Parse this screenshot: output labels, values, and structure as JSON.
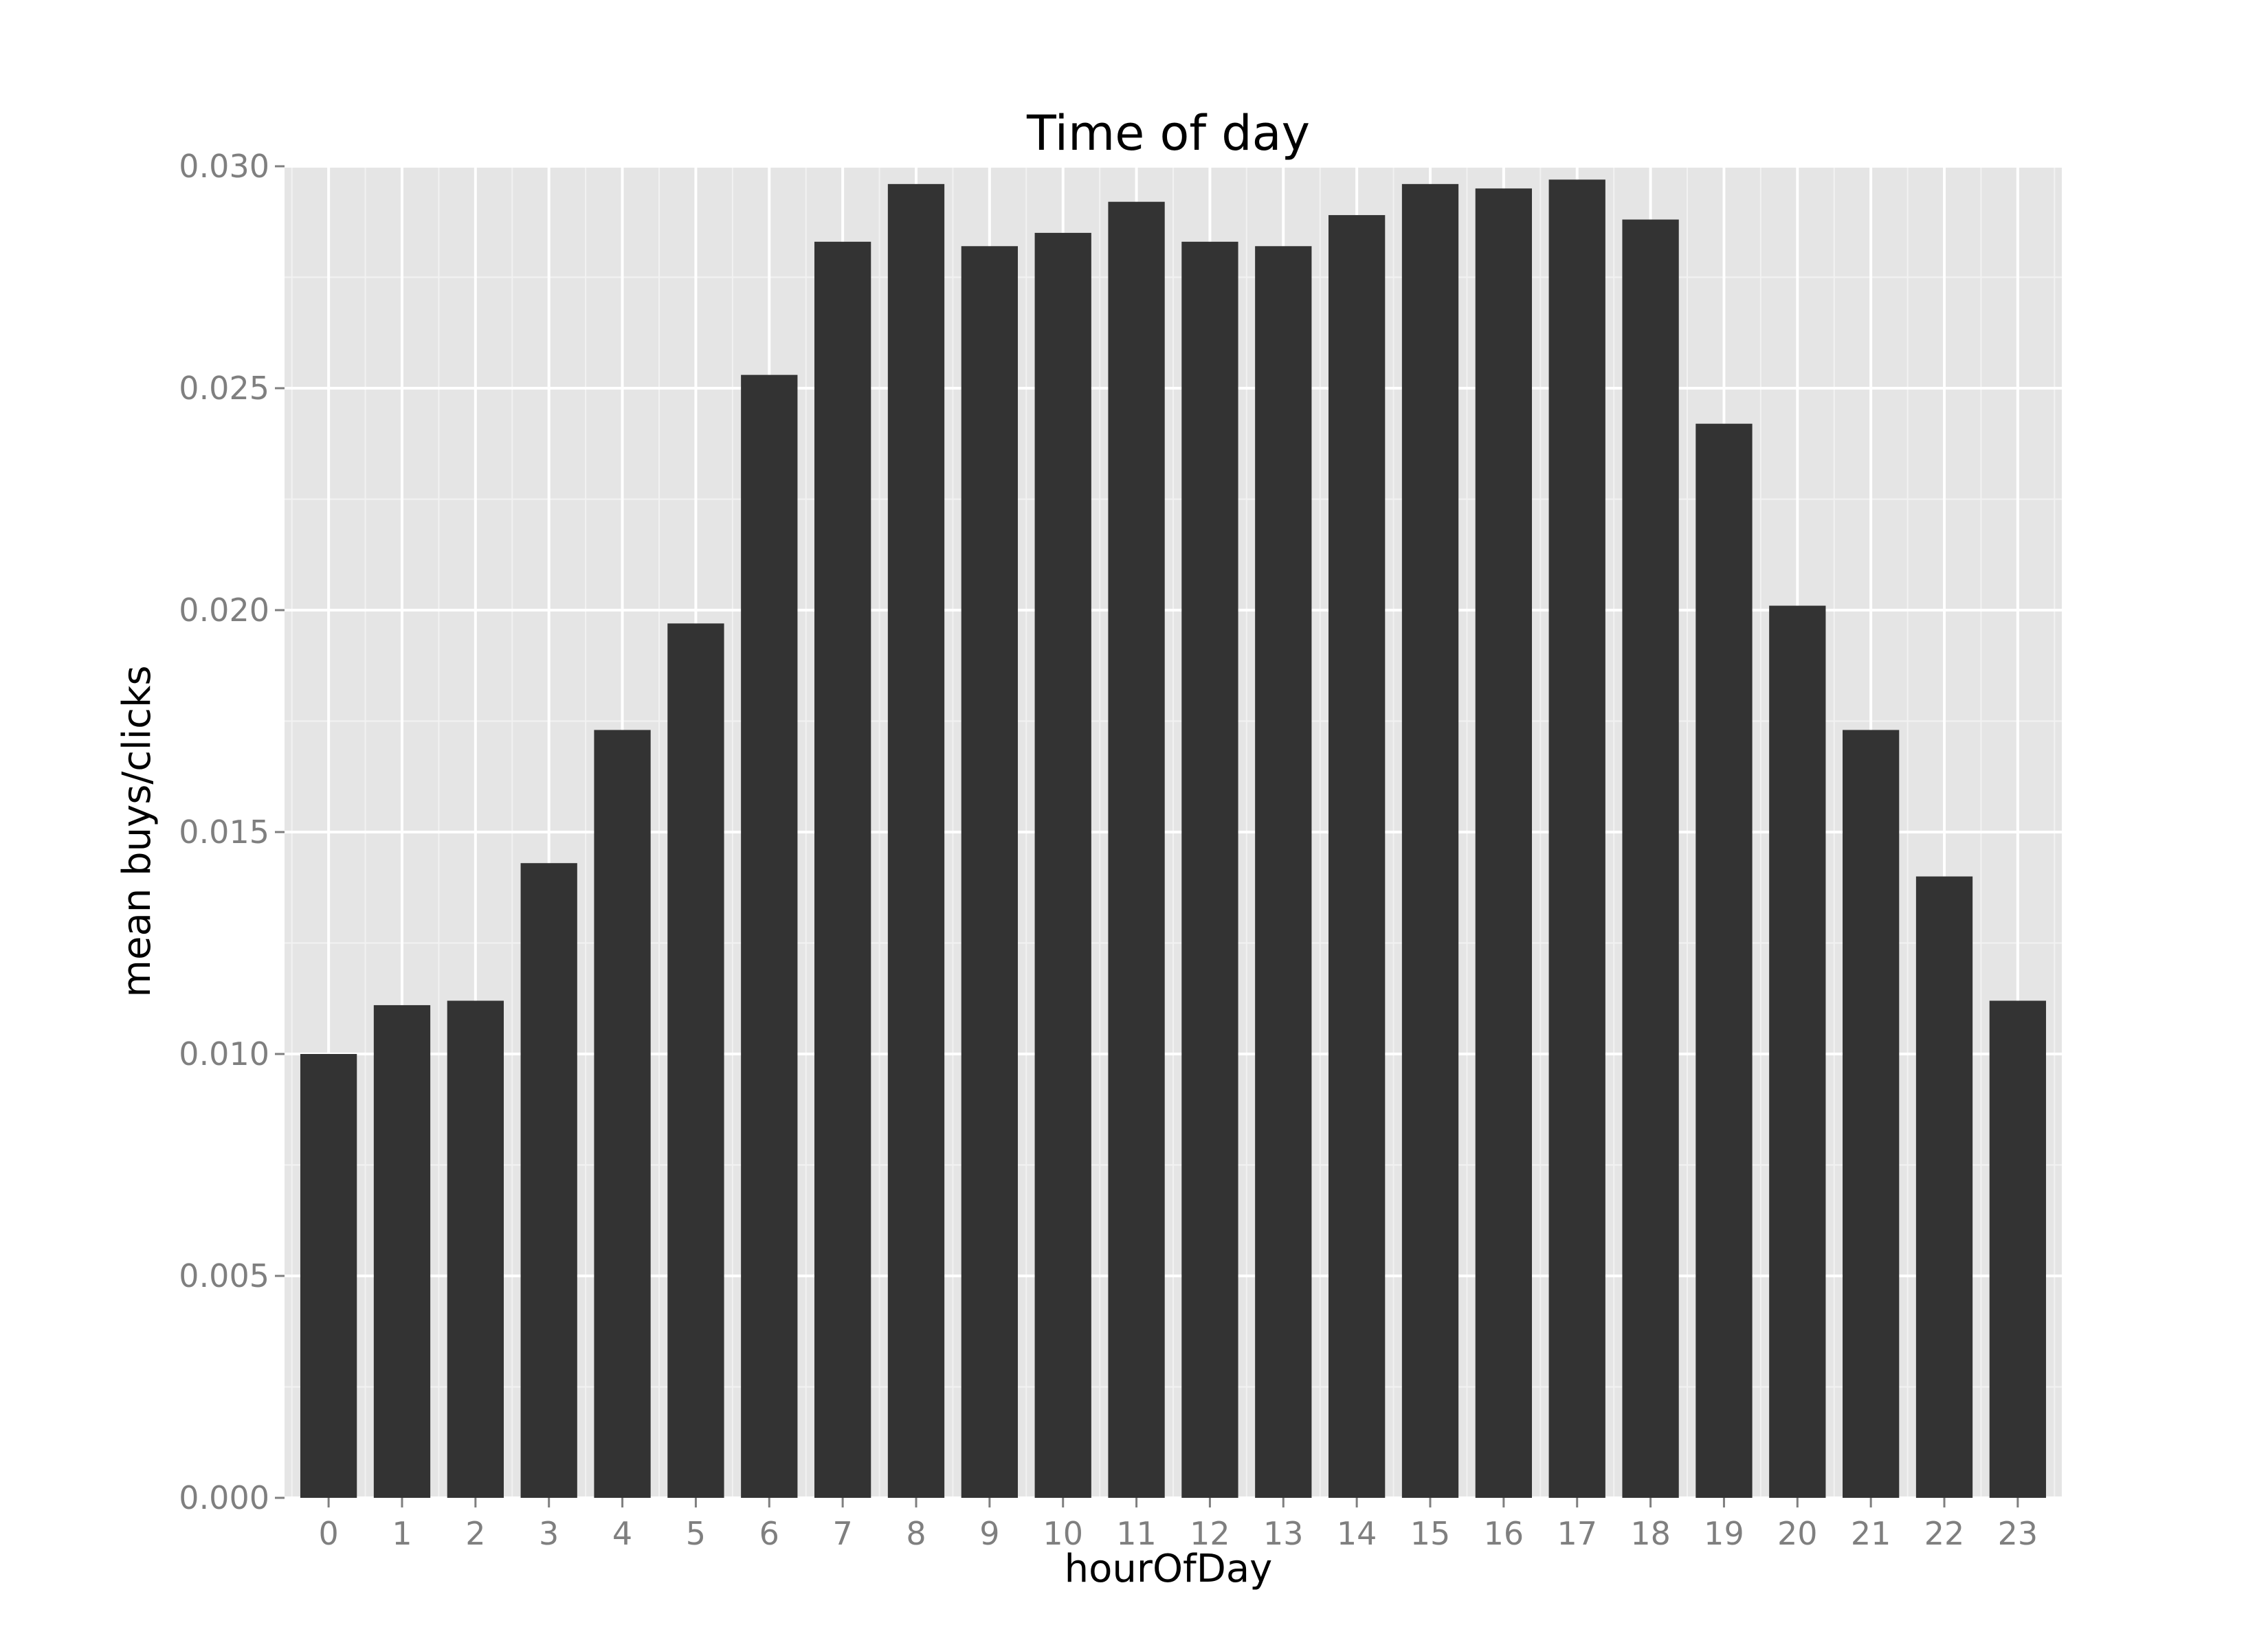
{
  "chart_data": {
    "type": "bar",
    "title": "Time of day",
    "xlabel": "hourOfDay",
    "ylabel": "mean buys/clicks",
    "categories": [
      "0",
      "1",
      "2",
      "3",
      "4",
      "5",
      "6",
      "7",
      "8",
      "9",
      "10",
      "11",
      "12",
      "13",
      "14",
      "15",
      "16",
      "17",
      "18",
      "19",
      "20",
      "21",
      "22",
      "23"
    ],
    "values": [
      0.01,
      0.0111,
      0.0112,
      0.0143,
      0.0173,
      0.0197,
      0.0253,
      0.0283,
      0.0296,
      0.0282,
      0.0285,
      0.0292,
      0.0283,
      0.0282,
      0.0289,
      0.0296,
      0.0295,
      0.0297,
      0.0288,
      0.0242,
      0.0201,
      0.0173,
      0.014,
      0.0112
    ],
    "ylim": [
      0,
      0.03
    ],
    "yticks": [
      "0.000",
      "0.005",
      "0.010",
      "0.015",
      "0.020",
      "0.025",
      "0.030"
    ],
    "grid": true,
    "legend": "none",
    "colors": {
      "bar": "#333333",
      "panel": "#e5e5e5",
      "grid_major": "#ffffff",
      "grid_minor": "#f2f2f2",
      "tick_text": "#7f7f7f"
    }
  }
}
